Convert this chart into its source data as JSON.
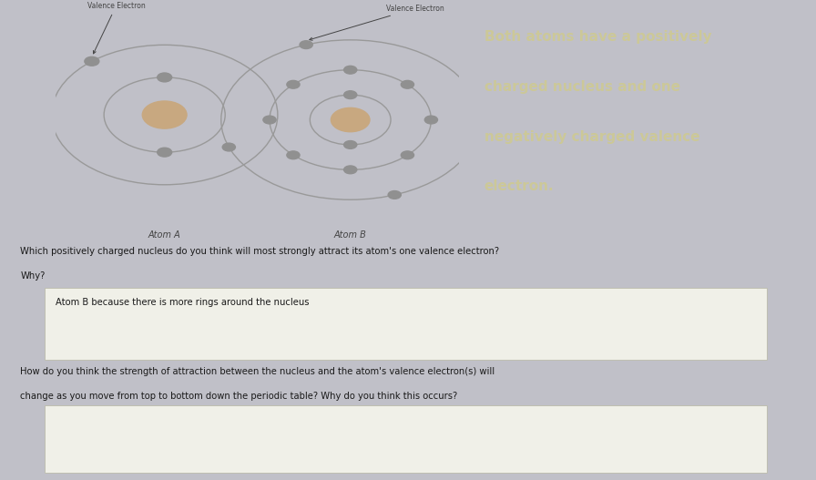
{
  "bg_outer_color": "#c0c0c8",
  "bg_teal_color": "#4a9a96",
  "bg_diagram_color": "#dcdce0",
  "bg_info_color": "#6a6e88",
  "bg_bottom_color": "#e8a820",
  "atom_a_label": "Atom A",
  "atom_b_label": "Atom B",
  "valence_electron_label": "Valence Electron",
  "info_text_line1": "Both atoms have a positively",
  "info_text_line2": "charged nucleus and one",
  "info_text_line3": "negatively charged valence",
  "info_text_line4": "electron.",
  "info_text_color": "#ccc898",
  "question1_line1": "Which positively charged nucleus do you think will most strongly attract its atom's one valence electron?",
  "question1_line2": "Why?",
  "answer1": "Atom B because there is more rings around the nucleus",
  "question2_line1": "How do you think the strength of attraction between the nucleus and the atom's valence electron(s) will",
  "question2_line2": "change as you move from top to bottom down the periodic table? Why do you think this occurs?",
  "answer2": "",
  "text_color_dark": "#1a1a1a",
  "nucleus_color_a": "#c8a880",
  "nucleus_color_b": "#c8a880",
  "orbit_color": "#999999",
  "electron_color": "#909090",
  "arrow_color": "#444444",
  "label_color": "#444444",
  "answer_box_color": "#f0f0e8",
  "answer_box_border": "#bbbbaa"
}
